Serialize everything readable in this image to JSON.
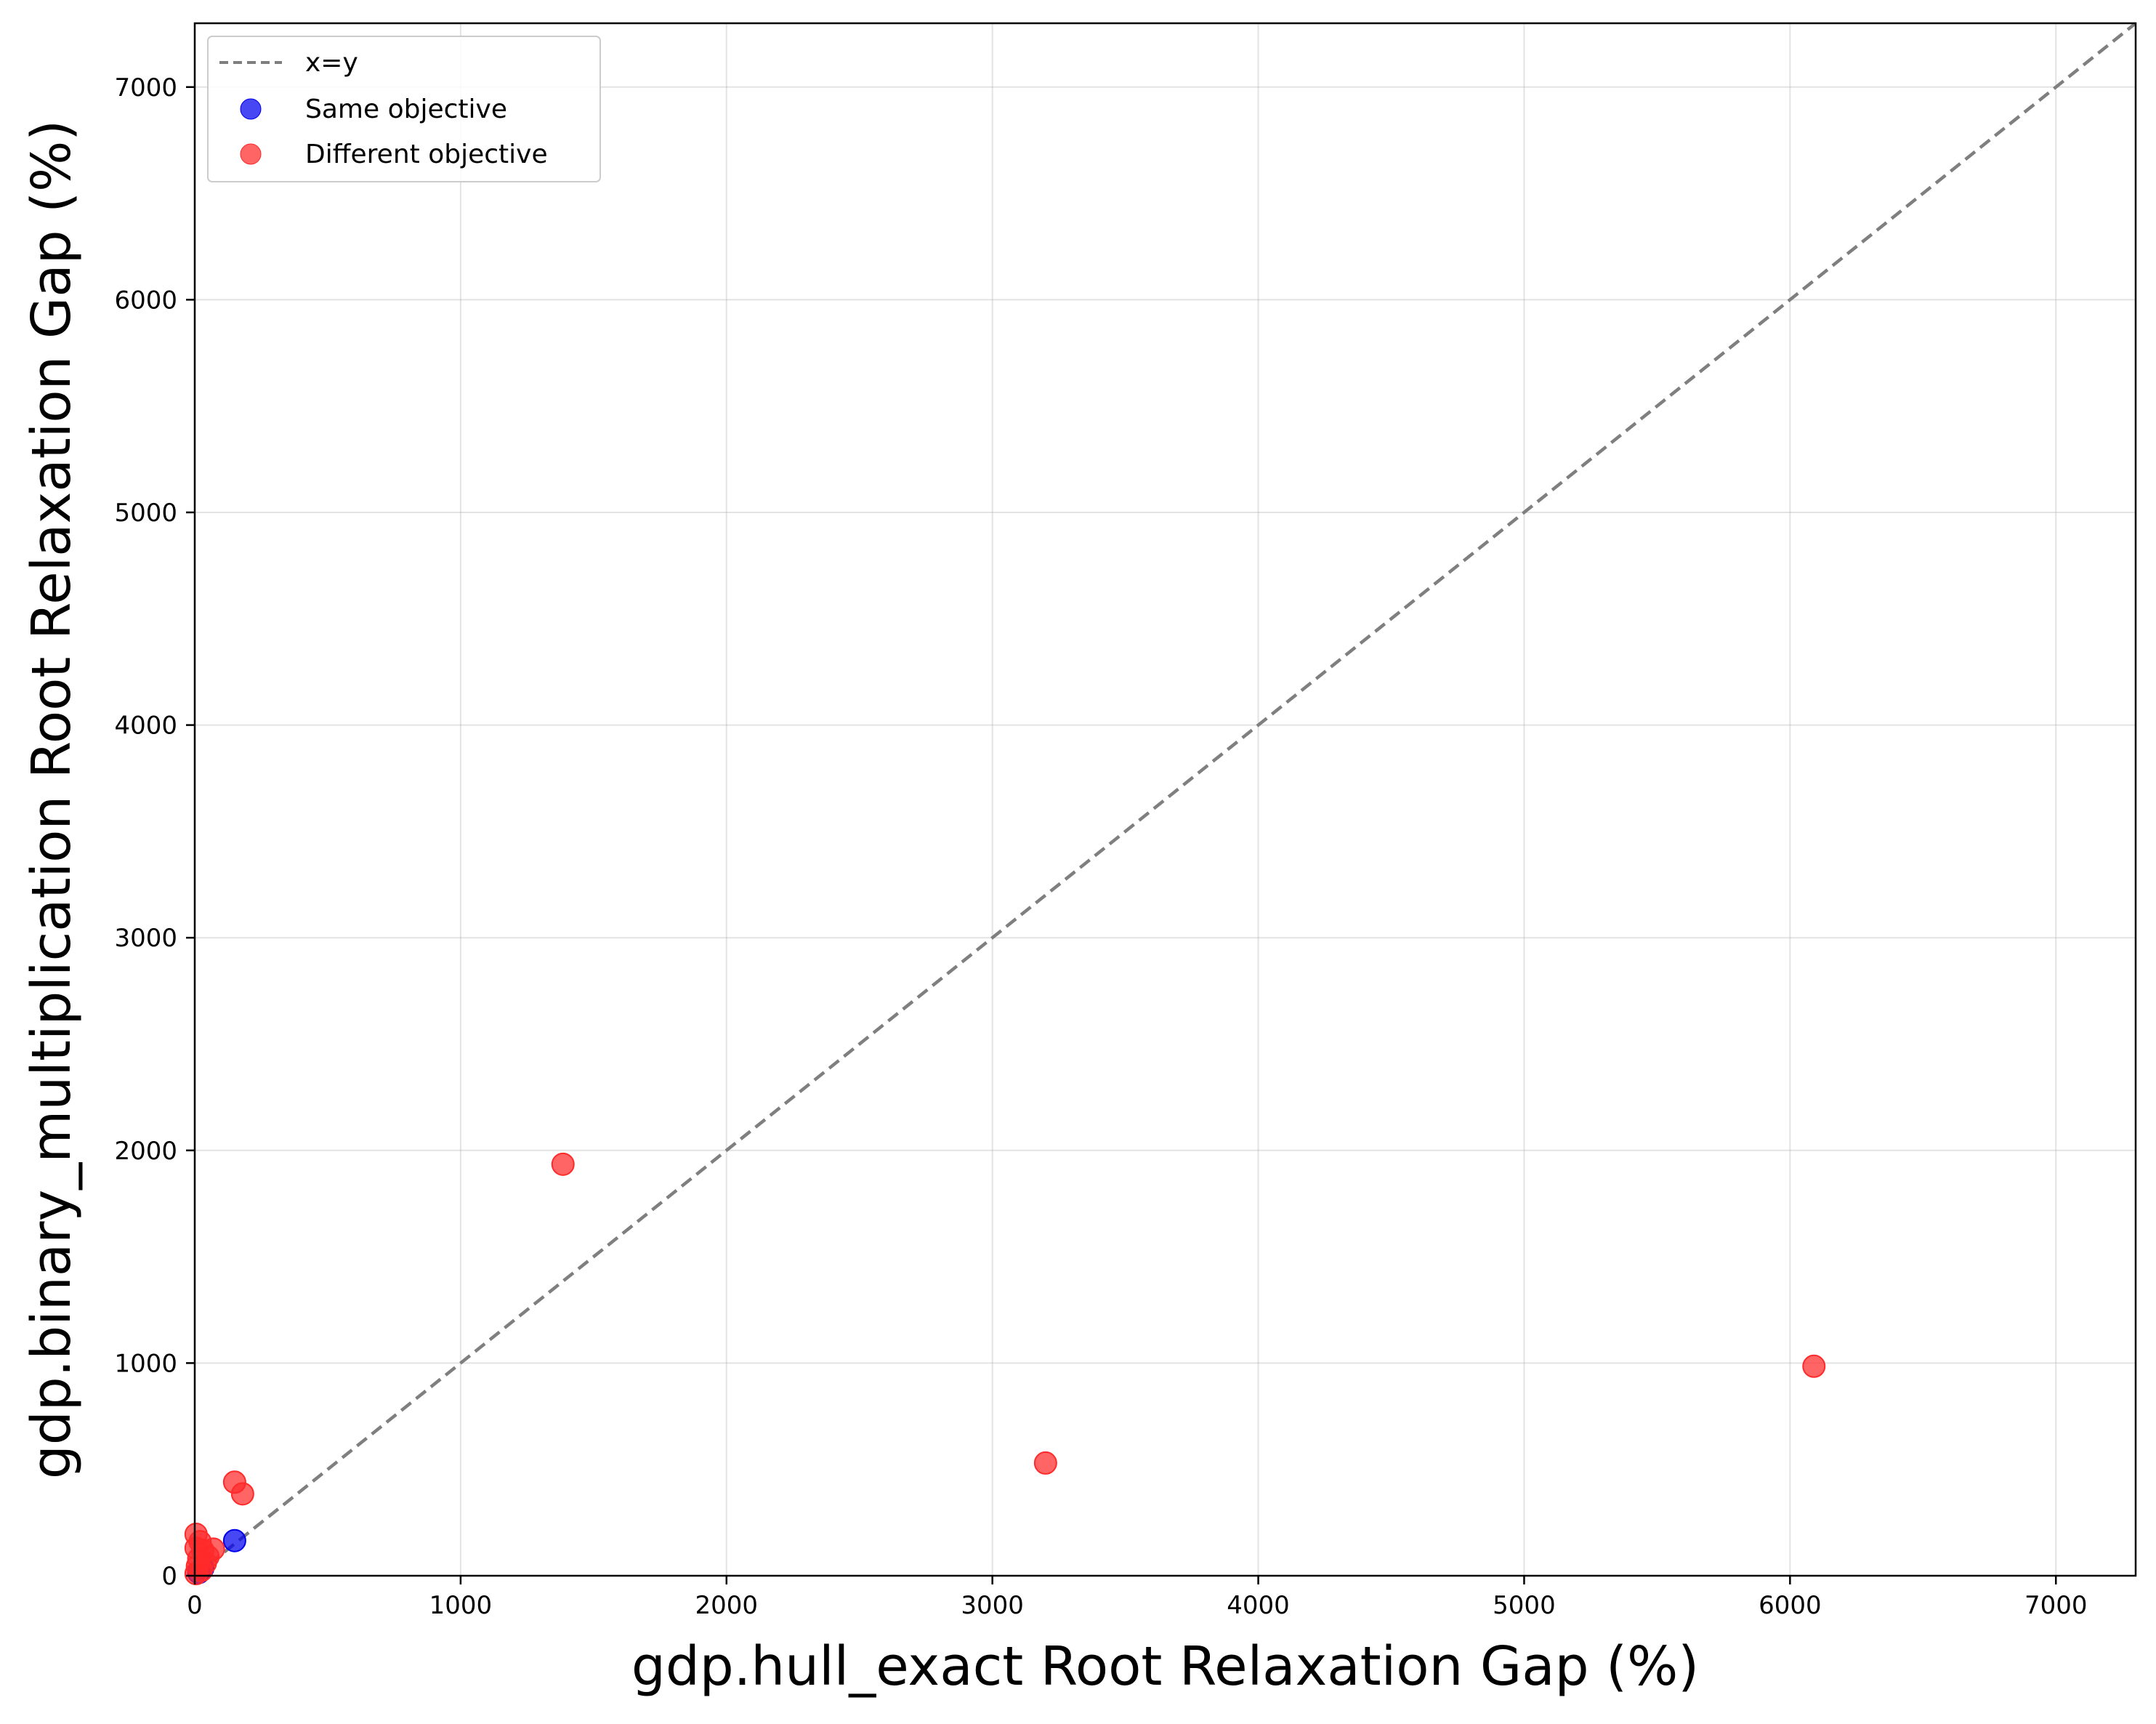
{
  "chart_data": {
    "type": "scatter",
    "xlabel": "gdp.hull_exact Root Relaxation Gap (%)",
    "ylabel": "gdp.binary_multiplication Root Relaxation Gap (%)",
    "xlim": [
      0,
      7300
    ],
    "ylim": [
      0,
      7300
    ],
    "xticks": [
      0,
      1000,
      2000,
      3000,
      4000,
      5000,
      6000,
      7000
    ],
    "yticks": [
      0,
      1000,
      2000,
      3000,
      4000,
      5000,
      6000,
      7000
    ],
    "grid": true,
    "legend_position": "top-left",
    "reference_line": {
      "name": "x=y",
      "style": "dashed",
      "color": "#7f7f7f"
    },
    "series": [
      {
        "name": "Same objective",
        "color": "#0000ee",
        "points": [
          {
            "x": 150,
            "y": 165
          },
          {
            "x": 15,
            "y": 15
          },
          {
            "x": 30,
            "y": 35
          }
        ]
      },
      {
        "name": "Different objective",
        "color": "#ff2a2a",
        "points": [
          {
            "x": 1385,
            "y": 1935
          },
          {
            "x": 3200,
            "y": 530
          },
          {
            "x": 6090,
            "y": 985
          },
          {
            "x": 150,
            "y": 440
          },
          {
            "x": 180,
            "y": 385
          },
          {
            "x": 5,
            "y": 195
          },
          {
            "x": 20,
            "y": 160
          },
          {
            "x": 5,
            "y": 130
          },
          {
            "x": 30,
            "y": 120
          },
          {
            "x": 70,
            "y": 125
          },
          {
            "x": 50,
            "y": 90
          },
          {
            "x": 15,
            "y": 80
          },
          {
            "x": 40,
            "y": 60
          },
          {
            "x": 10,
            "y": 45
          },
          {
            "x": 25,
            "y": 25
          },
          {
            "x": 5,
            "y": 10
          }
        ]
      }
    ]
  }
}
